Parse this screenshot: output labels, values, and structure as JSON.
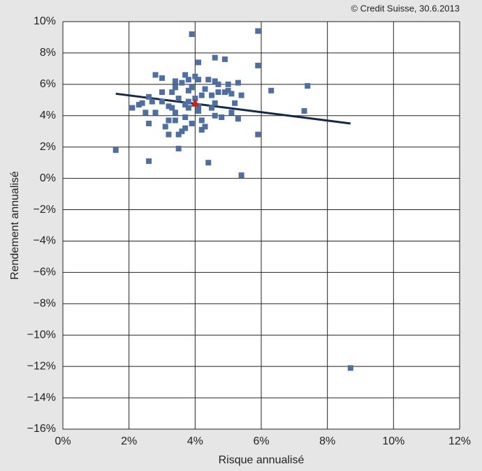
{
  "chart_data": {
    "type": "scatter",
    "source": "© Credit Suisse, 30.6.2013",
    "x_label": "Risque annualisé",
    "y_label": "Rendement annualisé",
    "xlim": [
      0,
      12
    ],
    "ylim": [
      -16,
      10
    ],
    "xticks": [
      {
        "value": 0,
        "label": "0%"
      },
      {
        "value": 2,
        "label": "2%"
      },
      {
        "value": 4,
        "label": "4%"
      },
      {
        "value": 6,
        "label": "6%"
      },
      {
        "value": 8,
        "label": "8%"
      },
      {
        "value": 10,
        "label": "10%"
      },
      {
        "value": 12,
        "label": "12%"
      }
    ],
    "yticks": [
      {
        "value": 10,
        "label": "10%"
      },
      {
        "value": 8,
        "label": "8%"
      },
      {
        "value": 6,
        "label": "6%"
      },
      {
        "value": 4,
        "label": "4%"
      },
      {
        "value": 2,
        "label": "2%"
      },
      {
        "value": 0,
        "label": "0%"
      },
      {
        "value": -2,
        "label": "−2%"
      },
      {
        "value": -4,
        "label": "−4%"
      },
      {
        "value": -6,
        "label": "−6%"
      },
      {
        "value": -8,
        "label": "−8%"
      },
      {
        "value": -10,
        "label": "−10%"
      },
      {
        "value": -12,
        "label": "−12%"
      },
      {
        "value": -14,
        "label": "−14%"
      },
      {
        "value": -16,
        "label": "−16%"
      }
    ],
    "grid": true,
    "series": [
      {
        "color": "#4f6fa3",
        "marker": "square",
        "x": [
          1.6,
          2.1,
          2.3,
          2.4,
          2.6,
          2.6,
          2.6,
          2.5,
          2.7,
          2.8,
          2.8,
          3.0,
          3.0,
          3.0,
          3.1,
          3.2,
          3.2,
          3.2,
          3.3,
          3.3,
          3.4,
          3.4,
          3.4,
          3.4,
          3.5,
          3.5,
          3.5,
          3.6,
          3.6,
          3.7,
          3.7,
          3.7,
          3.7,
          3.8,
          3.8,
          3.8,
          3.8,
          3.9,
          3.9,
          3.9,
          4.0,
          4.0,
          4.1,
          4.1,
          4.1,
          4.1,
          4.2,
          4.2,
          4.2,
          4.3,
          4.3,
          4.4,
          4.4,
          4.5,
          4.5,
          4.6,
          4.6,
          4.6,
          4.6,
          4.7,
          4.7,
          4.8,
          4.9,
          4.9,
          5.0,
          5.0,
          5.1,
          5.1,
          5.2,
          5.3,
          5.3,
          5.4,
          5.4,
          5.9,
          5.9,
          5.9,
          6.3,
          7.3,
          7.4,
          8.7
        ],
        "y": [
          1.8,
          4.5,
          4.7,
          4.8,
          5.2,
          3.5,
          1.1,
          4.2,
          4.9,
          6.6,
          4.2,
          6.4,
          5.5,
          4.9,
          3.3,
          4.6,
          3.7,
          2.8,
          5.5,
          4.5,
          4.2,
          5.8,
          6.2,
          3.7,
          2.8,
          1.9,
          5.1,
          6.1,
          3.0,
          3.9,
          4.7,
          6.6,
          3.2,
          6.3,
          5.6,
          4.5,
          4.9,
          9.2,
          3.5,
          5.8,
          6.5,
          5.1,
          4.6,
          6.3,
          7.4,
          4.3,
          3.1,
          3.7,
          5.3,
          3.3,
          5.7,
          6.3,
          1.0,
          5.3,
          4.5,
          4.0,
          6.2,
          7.7,
          4.8,
          6.0,
          5.5,
          3.9,
          5.5,
          7.6,
          5.6,
          6.0,
          4.2,
          5.4,
          4.8,
          6.1,
          3.8,
          0.2,
          5.3,
          2.8,
          7.2,
          9.4,
          5.6,
          4.3,
          5.9,
          -12.1
        ]
      },
      {
        "color": "#c0281e",
        "marker": "triangle",
        "x": [
          4.0
        ],
        "y": [
          4.8
        ]
      }
    ],
    "trendline": {
      "color": "#13294b",
      "x": [
        1.6,
        8.7
      ],
      "y": [
        5.4,
        3.5
      ]
    }
  }
}
